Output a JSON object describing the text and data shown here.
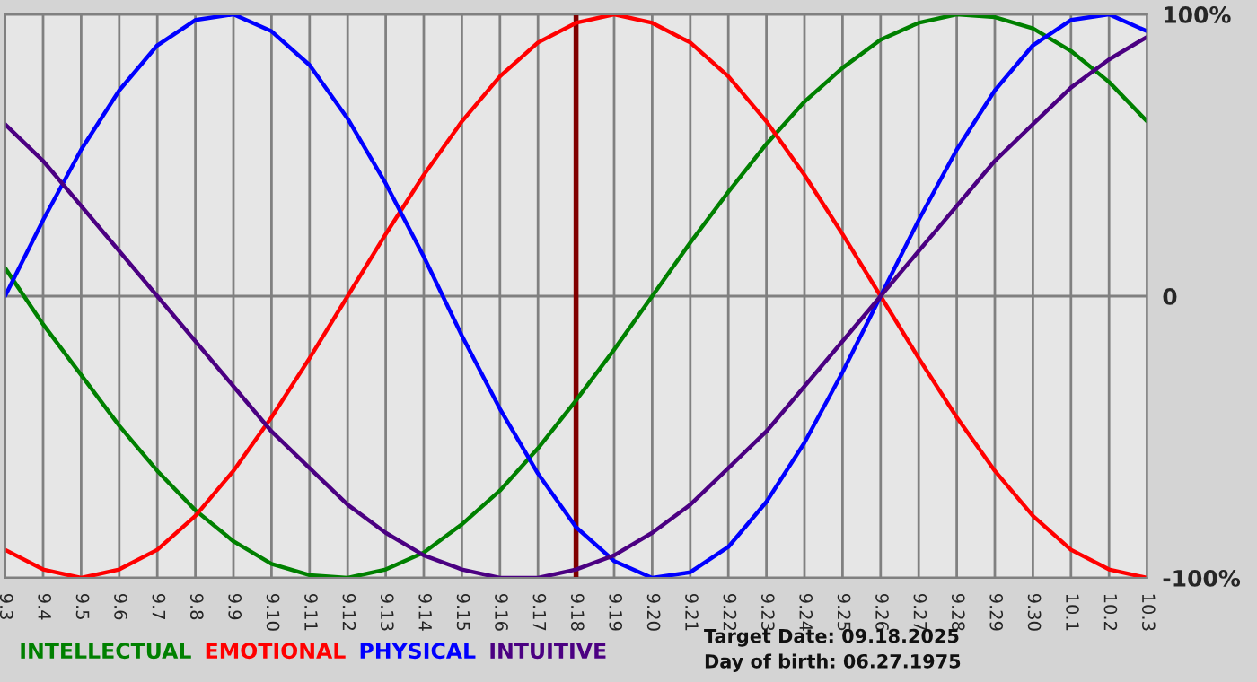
{
  "chart_data": {
    "type": "line",
    "categories": [
      "9.3",
      "9.4",
      "9.5",
      "9.6",
      "9.7",
      "9.8",
      "9.9",
      "9.10",
      "9.11",
      "9.12",
      "9.13",
      "9.14",
      "9.15",
      "9.16",
      "9.17",
      "9.18",
      "9.19",
      "9.20",
      "9.21",
      "9.22",
      "9.23",
      "9.24",
      "9.25",
      "9.26",
      "9.27",
      "9.28",
      "9.29",
      "9.30",
      "10.1",
      "10.2",
      "10.3"
    ],
    "series": [
      {
        "name": "INTELLECTUAL",
        "color": "#008000",
        "values": [
          10,
          -10,
          -28,
          -46,
          -62,
          -76,
          -87,
          -95,
          -99,
          -100,
          -97,
          -91,
          -81,
          -69,
          -54,
          -37,
          -19,
          0,
          19,
          37,
          54,
          69,
          81,
          91,
          97,
          100,
          99,
          95,
          87,
          76,
          62
        ]
      },
      {
        "name": "EMOTIONAL",
        "color": "#ff0000",
        "values": [
          -90,
          -97,
          -100,
          -97,
          -90,
          -78,
          -62,
          -43,
          -22,
          0,
          22,
          43,
          62,
          78,
          90,
          97,
          100,
          97,
          90,
          78,
          62,
          43,
          22,
          0,
          -22,
          -43,
          -62,
          -78,
          -90,
          -97,
          -100
        ]
      },
      {
        "name": "PHYSICAL",
        "color": "#0000ff",
        "values": [
          0,
          27,
          52,
          73,
          89,
          98,
          100,
          94,
          82,
          63,
          40,
          14,
          -14,
          -40,
          -63,
          -82,
          -94,
          -100,
          -98,
          -89,
          -73,
          -52,
          -27,
          0,
          27,
          52,
          73,
          89,
          98,
          100,
          94
        ]
      },
      {
        "name": "INTUITIVE",
        "color": "#4b0082",
        "values": [
          61,
          48,
          32,
          16,
          0,
          -16,
          -32,
          -48,
          -61,
          -74,
          -84,
          -92,
          -97,
          -100,
          -100,
          -97,
          -92,
          -84,
          -74,
          -61,
          -48,
          -32,
          -16,
          0,
          16,
          32,
          48,
          61,
          74,
          84,
          92
        ]
      }
    ],
    "ylim": [
      -100,
      100
    ],
    "yticks": [
      {
        "value": 100,
        "label": "100%"
      },
      0,
      {
        "value": -100,
        "label": "-100%"
      }
    ],
    "ref_lines": [
      {
        "axis": "x",
        "value": "9.18",
        "color": "#800000"
      }
    ],
    "annotations": [
      "Target Date: 09.18.2025",
      "Day of birth: 06.27.1975"
    ],
    "grid": true,
    "legend": "bottom"
  }
}
